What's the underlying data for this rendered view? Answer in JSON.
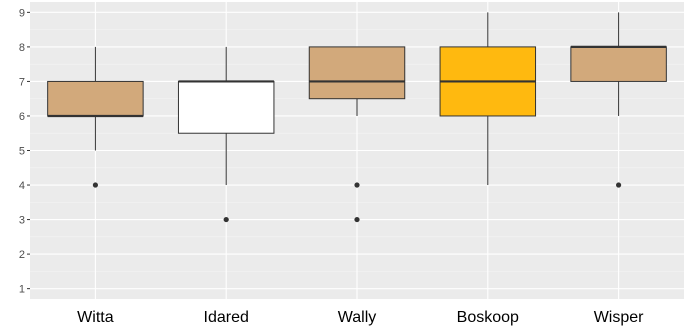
{
  "chart_data": {
    "type": "box",
    "title": "",
    "xlabel": "",
    "ylabel": "",
    "ylim": [
      0.7,
      9.3
    ],
    "yticks": [
      1,
      2,
      3,
      4,
      5,
      6,
      7,
      8,
      9
    ],
    "grid": true,
    "colors": {
      "panel": "#ebebeb",
      "grid_major": "#ffffff",
      "grid_minor": "#f4f4f4",
      "outline": "#333333",
      "outlier": "#333333"
    },
    "boxes": [
      {
        "category": "Witta",
        "whisker_low": 5,
        "q1": 6,
        "median": 6,
        "q3": 7,
        "whisker_high": 8,
        "outliers": [
          4
        ],
        "fill": "#d2a97b"
      },
      {
        "category": "Idared",
        "whisker_low": 4,
        "q1": 5.5,
        "median": 7,
        "q3": 7,
        "whisker_high": 8,
        "outliers": [
          3
        ],
        "fill": "#ffffff"
      },
      {
        "category": "Wally",
        "whisker_low": 6,
        "q1": 6.5,
        "median": 7,
        "q3": 8,
        "whisker_high": 8,
        "outliers": [
          4,
          3
        ],
        "fill": "#d2a97b"
      },
      {
        "category": "Boskoop",
        "whisker_low": 4,
        "q1": 6,
        "median": 7,
        "q3": 8,
        "whisker_high": 9,
        "outliers": [],
        "fill": "#ffb90f"
      },
      {
        "category": "Wisper",
        "whisker_low": 6,
        "q1": 7,
        "median": 8,
        "q3": 8,
        "whisker_high": 9,
        "outliers": [
          4
        ],
        "fill": "#d2a97b"
      }
    ]
  }
}
